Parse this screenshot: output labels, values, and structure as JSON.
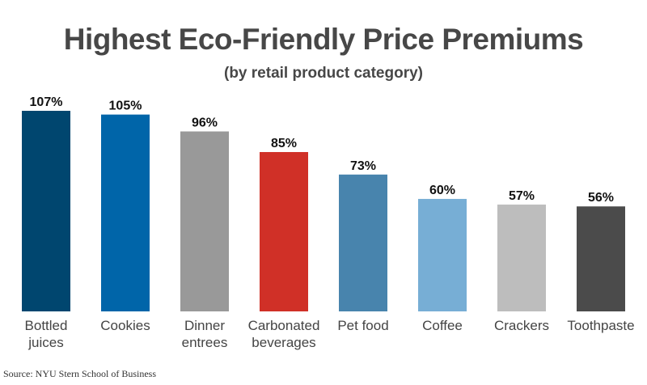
{
  "chart_data": {
    "type": "bar",
    "title": "Highest Eco-Friendly Price Premiums",
    "subtitle": "(by retail product category)",
    "xlabel": "",
    "ylabel": "",
    "ylim": [
      0,
      107
    ],
    "grid": false,
    "categories": [
      [
        "Bottled",
        "juices"
      ],
      [
        "Cookies"
      ],
      [
        "Dinner",
        "entrees"
      ],
      [
        "Carbonated",
        "beverages"
      ],
      [
        "Pet food"
      ],
      [
        "Coffee"
      ],
      [
        "Crackers"
      ],
      [
        "Toothpaste"
      ]
    ],
    "values": [
      107,
      105,
      96,
      85,
      73,
      60,
      57,
      56
    ],
    "value_labels": [
      "107%",
      "105%",
      "96%",
      "85%",
      "73%",
      "60%",
      "57%",
      "56%"
    ],
    "colors": [
      "#00466f",
      "#0065a9",
      "#999999",
      "#d03027",
      "#4884ad",
      "#77aed5",
      "#bdbdbd",
      "#4b4b4b"
    ],
    "source": "Source: NYU Stern School of Business"
  }
}
